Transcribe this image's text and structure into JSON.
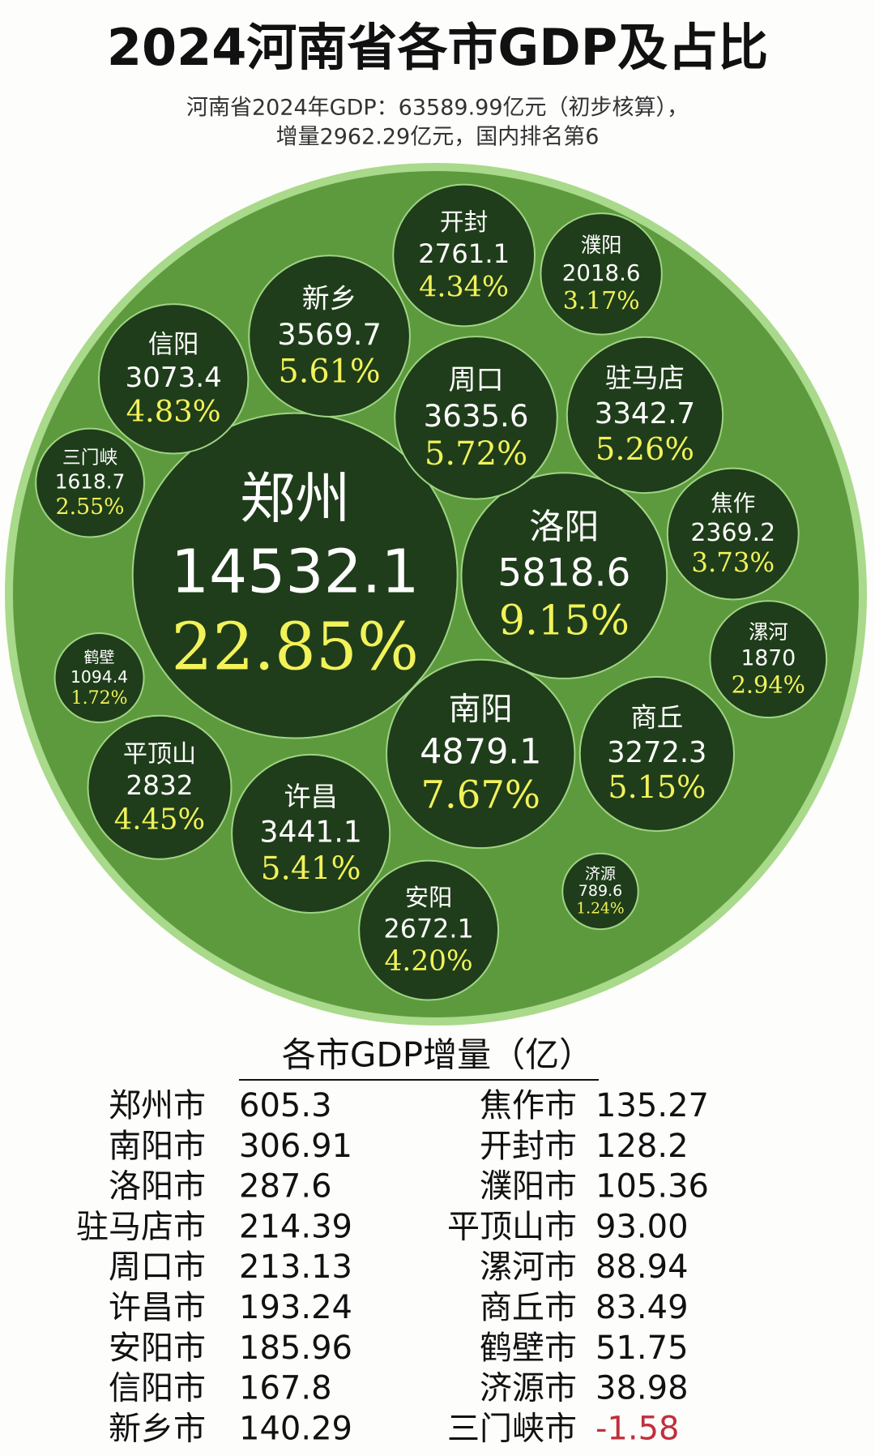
{
  "chart_data": {
    "type": "bubble",
    "title": "2024河南省各市GDP及占比",
    "subtitle": [
      "河南省2024年GDP：63589.99亿元（初步核算），",
      "增量2962.29亿元，国内排名第6"
    ],
    "categories": [
      "郑州",
      "洛阳",
      "南阳",
      "周口",
      "新乡",
      "驻马店",
      "商丘",
      "许昌",
      "信阳",
      "平顶山",
      "开封",
      "安阳",
      "焦作",
      "濮阳",
      "漯河",
      "三门峡",
      "鹤壁",
      "济源"
    ],
    "values": [
      14532.1,
      5818.6,
      4879.1,
      3635.6,
      3569.7,
      3342.7,
      3272.3,
      3441.1,
      3073.4,
      2832,
      2761.1,
      2672.1,
      2369.2,
      2018.6,
      1870,
      1618.7,
      1094.4,
      789.6
    ],
    "percentages": [
      22.85,
      9.15,
      7.67,
      5.72,
      5.61,
      5.26,
      5.15,
      5.41,
      4.83,
      4.45,
      4.34,
      4.2,
      3.73,
      3.17,
      2.94,
      2.55,
      1.72,
      1.24
    ],
    "percentage_labels": [
      "22.85%",
      "9.15%",
      "7.67%",
      "5.72%",
      "5.61%",
      "5.26%",
      "5.15%",
      "5.41%",
      "4.83%",
      "4.45%",
      "4.34%",
      "4.20%",
      "3.73%",
      "3.17%",
      "2.94%",
      "2.55%",
      "1.72%",
      "1.24%"
    ],
    "color": "#1f3d1a"
  },
  "table": {
    "title": "各市GDP增量（亿）",
    "rows": [
      [
        "郑州市",
        605.3
      ],
      [
        "南阳市",
        306.91
      ],
      [
        "洛阳市",
        287.6
      ],
      [
        "驻马店市",
        214.39
      ],
      [
        "周口市",
        213.13
      ],
      [
        "许昌市",
        193.24
      ],
      [
        "安阳市",
        185.96
      ],
      [
        "信阳市",
        167.8
      ],
      [
        "新乡市",
        140.29
      ],
      [
        "焦作市",
        135.27
      ],
      [
        "开封市",
        128.2
      ],
      [
        "濮阳市",
        105.36
      ],
      [
        "平顶山市",
        {
          "value": 93,
          "label": "93.00"
        }
      ],
      [
        "漯河市",
        88.94
      ],
      [
        "商丘市",
        83.49
      ],
      [
        "鹤壁市",
        51.75
      ],
      [
        "济源市",
        38.98
      ],
      [
        "三门峡市",
        -1.58
      ]
    ]
  }
}
